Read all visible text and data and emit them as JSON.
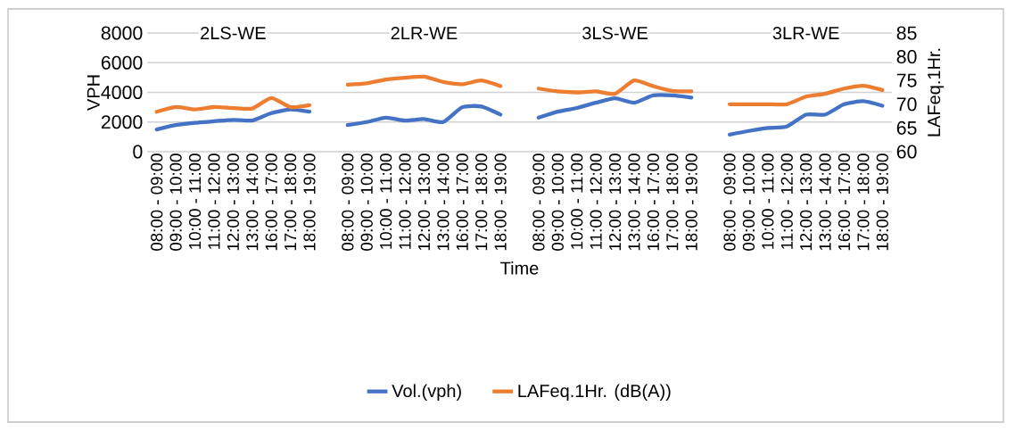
{
  "chart_data": {
    "type": "line",
    "categories": [
      "08:00 - 09:00",
      "09:00 - 10:00",
      "10:00 - 11:00",
      "11:00 - 12:00",
      "12:00 - 13:00",
      "13:00 - 14:00",
      "16:00 - 17:00",
      "17:00 - 18:00",
      "18:00 - 19:00",
      null,
      "08:00 - 09:00",
      "09:00 - 10:00",
      "10:00 - 11:00",
      "11:00 - 12:00",
      "12:00 - 13:00",
      "13:00 - 14:00",
      "16:00 - 17:00",
      "17:00 - 18:00",
      "18:00 - 19:00",
      null,
      "08:00 - 09:00",
      "09:00 - 10:00",
      "10:00 - 11:00",
      "11:00 - 12:00",
      "12:00 - 13:00",
      "13:00 - 14:00",
      "16:00 - 17:00",
      "17:00 - 18:00",
      "18:00 - 19:00",
      null,
      "08:00 - 09:00",
      "09:00 - 10:00",
      "10:00 - 11:00",
      "11:00 - 12:00",
      "12:00 - 13:00",
      "13:00 - 14:00",
      "16:00 - 17:00",
      "17:00 - 18:00",
      "18:00 - 19:00"
    ],
    "series": [
      {
        "name": "Vol.(vph)",
        "color": "#4472c4",
        "values": [
          1500,
          1800,
          1950,
          2050,
          2150,
          2100,
          2600,
          2850,
          2700,
          null,
          1800,
          2000,
          2300,
          2100,
          2200,
          2000,
          3000,
          3050,
          2500,
          null,
          2300,
          2700,
          2950,
          3300,
          3600,
          3300,
          3800,
          3800,
          3650,
          null,
          1150,
          1400,
          1600,
          1700,
          2500,
          2500,
          3200,
          3400,
          3100
        ]
      },
      {
        "name": "LAFeq.1Hr. (dB(A))",
        "color": "#ed7d31",
        "axis": "y2",
        "values": [
          68.4,
          69.4,
          68.9,
          69.4,
          69.2,
          69.1,
          71.3,
          69.4,
          69.8,
          null,
          74.1,
          74.4,
          75.2,
          75.6,
          75.8,
          74.7,
          74.2,
          75.0,
          73.8,
          null,
          73.3,
          72.7,
          72.5,
          72.7,
          72.2,
          75.0,
          73.8,
          72.8,
          72.7,
          null,
          70.0,
          70.0,
          70.0,
          70.0,
          71.6,
          72.2,
          73.3,
          73.9,
          73.0
        ]
      }
    ],
    "xlabel": "Time",
    "ylabel": "VPH",
    "y2label": "LAFeq.1Hr.",
    "ylim": [
      0,
      8000
    ],
    "yticks": [
      0,
      2000,
      4000,
      6000,
      8000
    ],
    "y2lim": [
      60,
      85
    ],
    "y2ticks": [
      60,
      65,
      70,
      75,
      80,
      85
    ],
    "annotations": [
      "2LS-WE",
      "2LR-WE",
      "3LS-WE",
      "3LR-WE"
    ],
    "grid": "y",
    "legend": "bottom"
  }
}
